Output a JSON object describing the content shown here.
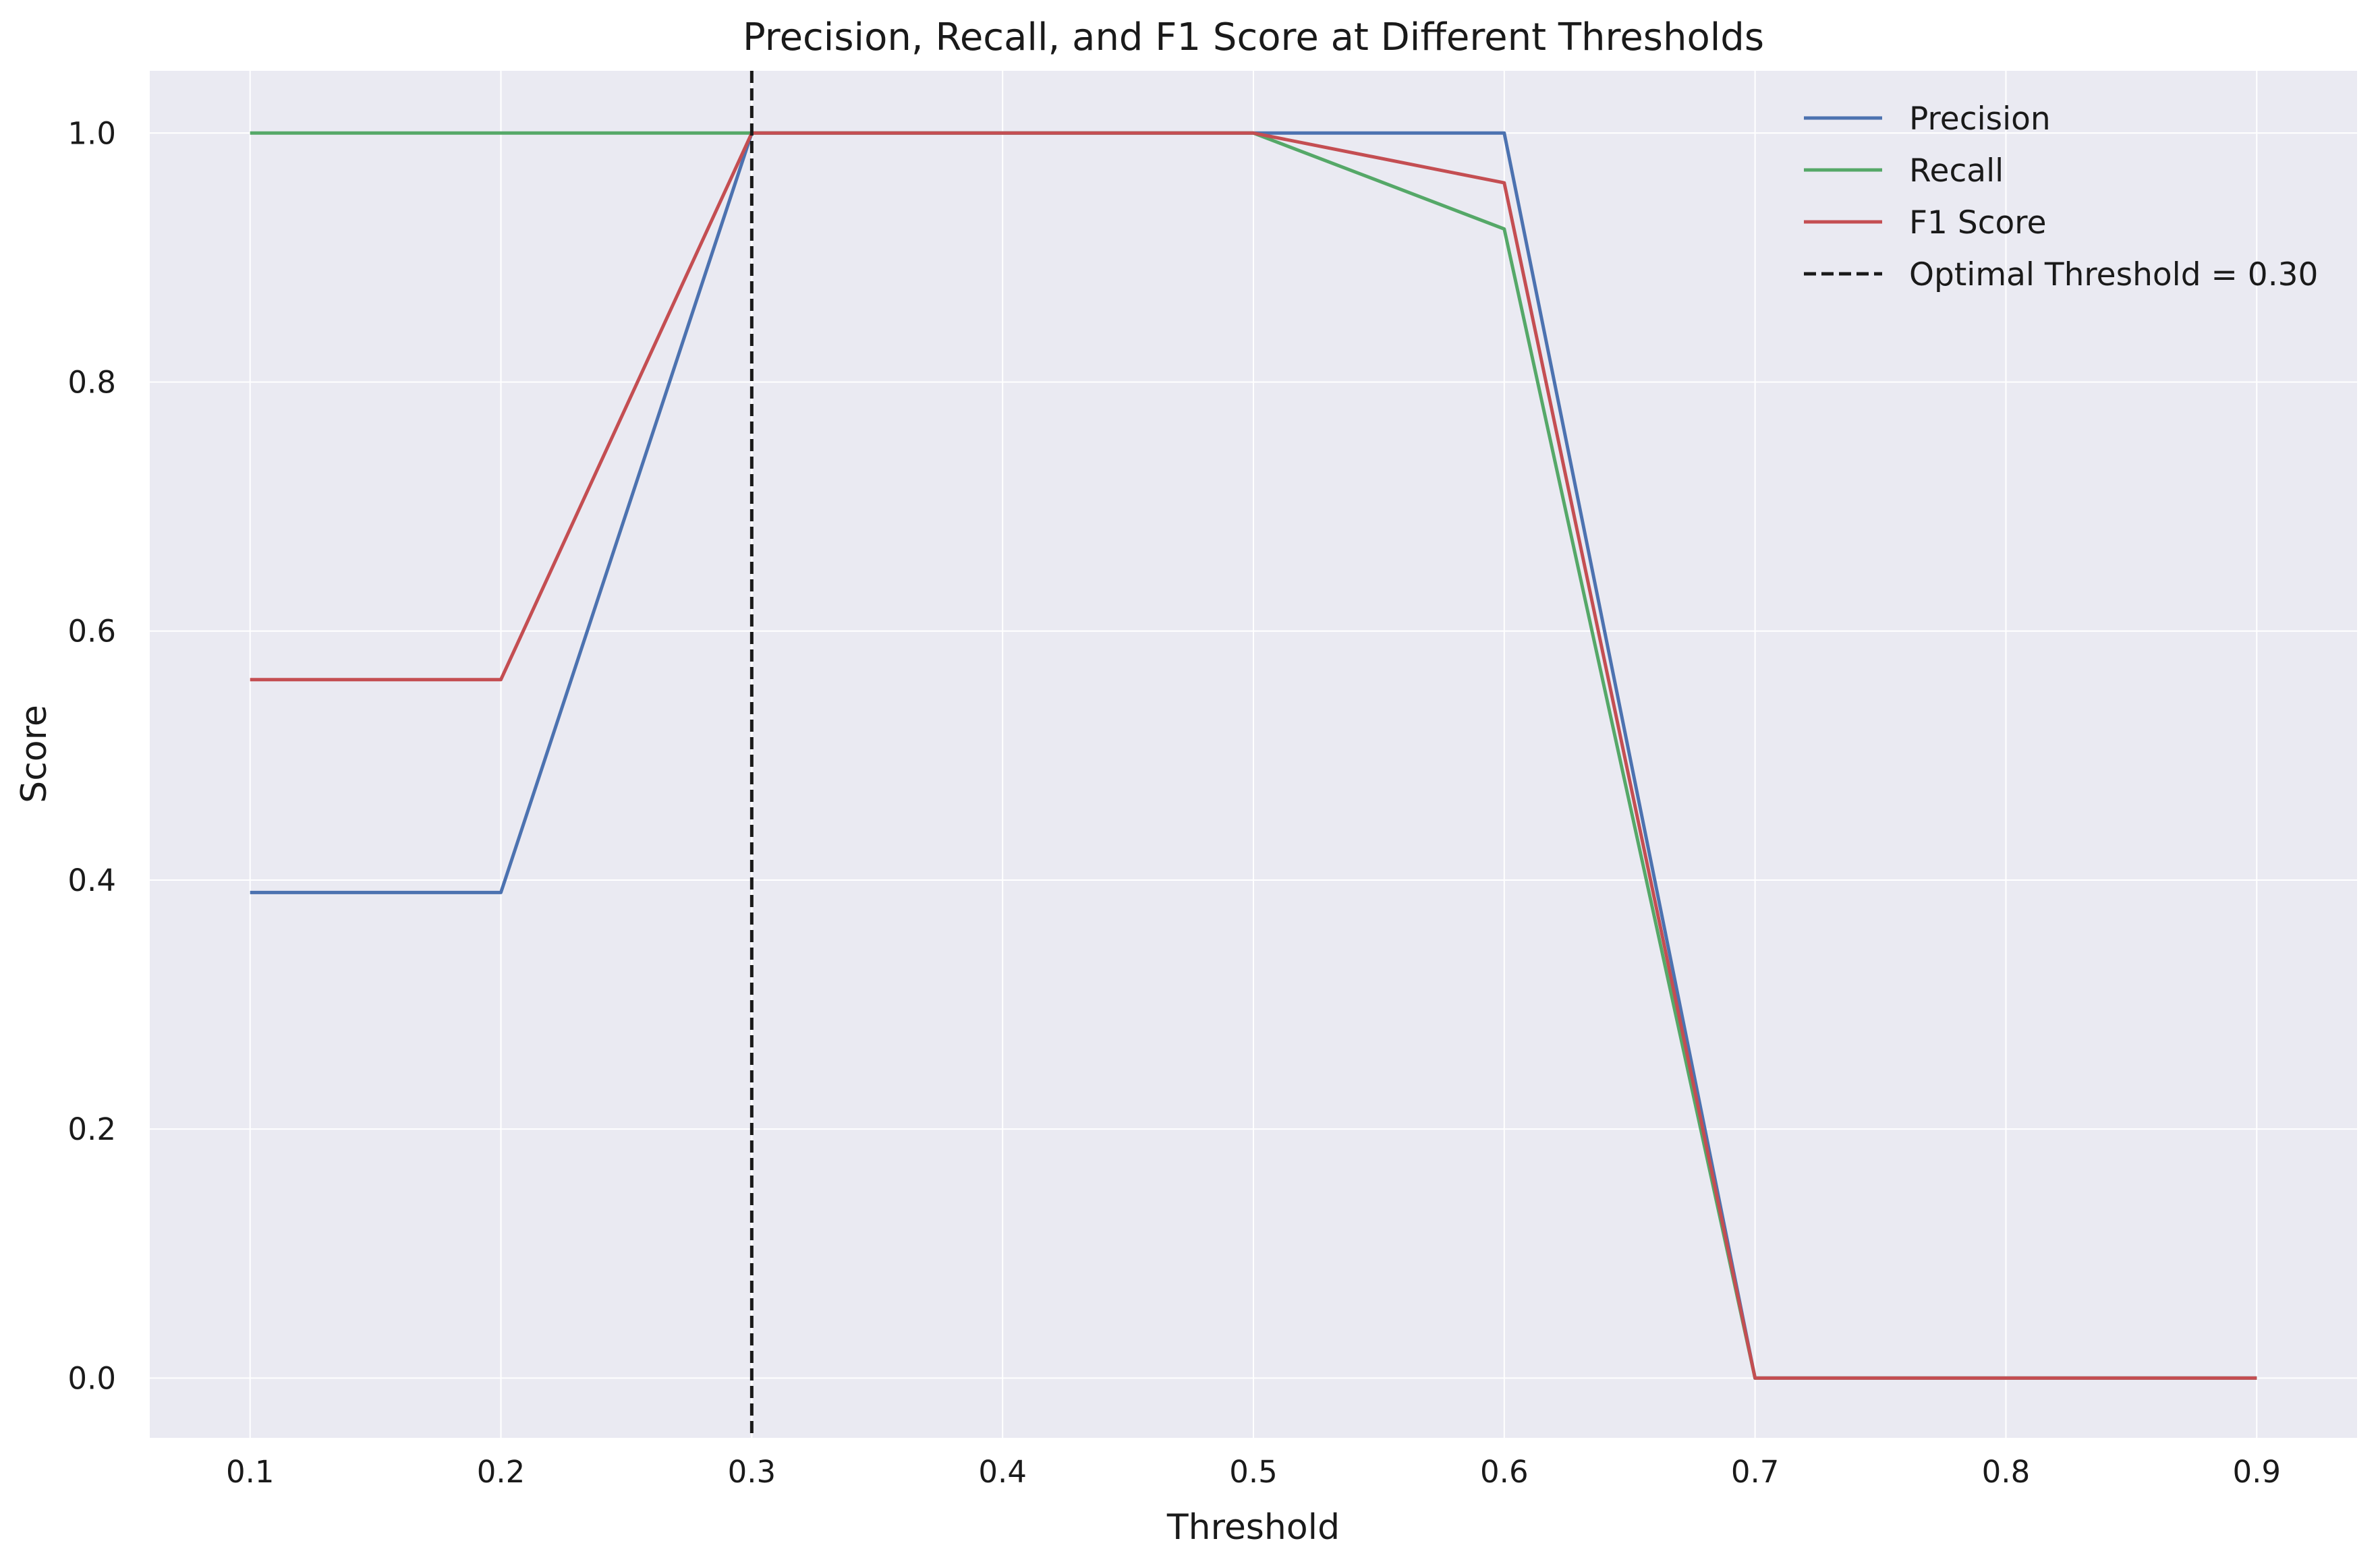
{
  "chart_data": {
    "type": "line",
    "title": "Precision, Recall, and F1 Score at Different Thresholds",
    "xlabel": "Threshold",
    "ylabel": "Score",
    "x": [
      0.1,
      0.2,
      0.3,
      0.4,
      0.5,
      0.6,
      0.7,
      0.8,
      0.9
    ],
    "xlim": [
      0.06,
      0.94
    ],
    "ylim": [
      -0.048,
      1.05
    ],
    "xticks": [
      "0.1",
      "0.2",
      "0.3",
      "0.4",
      "0.5",
      "0.6",
      "0.7",
      "0.8",
      "0.9"
    ],
    "yticks": [
      "0.0",
      "0.2",
      "0.4",
      "0.6",
      "0.8",
      "1.0"
    ],
    "grid": true,
    "legend_position": "top-right",
    "series": [
      {
        "name": "Precision",
        "color": "#4c72b0",
        "values": [
          0.39,
          0.39,
          1.0,
          1.0,
          1.0,
          1.0,
          0.0,
          0.0,
          0.0
        ]
      },
      {
        "name": "Recall",
        "color": "#55a868",
        "values": [
          1.0,
          1.0,
          1.0,
          1.0,
          1.0,
          0.923,
          0.0,
          0.0,
          0.0
        ]
      },
      {
        "name": "F1 Score",
        "color": "#c44e52",
        "values": [
          0.561,
          0.561,
          1.0,
          1.0,
          1.0,
          0.96,
          0.0,
          0.0,
          0.0
        ]
      }
    ],
    "vline": {
      "x": 0.3,
      "label": "Optimal Threshold = 0.30",
      "color": "#1a1a1a",
      "style": "dashed"
    },
    "colors": {
      "plot_background": "#eaeaf2",
      "grid": "#ffffff"
    }
  }
}
